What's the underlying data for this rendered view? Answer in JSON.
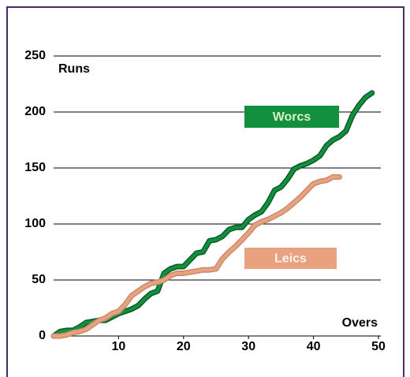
{
  "chart_data": {
    "type": "line",
    "x_label": "Overs",
    "y_label": "Runs",
    "x": [
      0,
      1,
      2,
      3,
      4,
      5,
      6,
      7,
      8,
      9,
      10,
      11,
      12,
      13,
      14,
      15,
      16,
      17,
      18,
      19,
      20,
      21,
      22,
      23,
      24,
      25,
      26,
      27,
      28,
      29,
      30,
      31,
      32,
      33,
      34,
      35,
      36,
      37,
      38,
      39,
      40,
      41,
      42,
      43,
      44,
      45,
      46,
      47,
      48,
      49
    ],
    "series": [
      {
        "name": "Worcs",
        "color": "#12903e",
        "outline": "#0b5a28",
        "values": [
          0,
          4,
          5,
          5,
          8,
          12,
          13,
          14,
          14,
          17,
          20,
          22,
          24,
          27,
          33,
          38,
          40,
          56,
          60,
          62,
          62,
          68,
          74,
          75,
          85,
          86,
          89,
          95,
          97,
          97,
          104,
          108,
          111,
          119,
          130,
          133,
          140,
          149,
          152,
          154,
          157,
          161,
          170,
          175,
          178,
          183,
          197,
          206,
          213,
          217
        ]
      },
      {
        "name": "Leics",
        "color": "#e9a27f",
        "outline": "#c88a6c",
        "values": [
          0,
          0,
          1,
          3,
          4,
          6,
          10,
          14,
          16,
          20,
          22,
          28,
          36,
          40,
          44,
          47,
          48,
          50,
          54,
          56,
          56,
          57,
          58,
          59,
          59,
          60,
          69,
          75,
          80,
          86,
          92,
          99,
          102,
          104,
          107,
          110,
          114,
          119,
          124,
          130,
          136,
          138,
          139,
          142,
          142,
          null,
          null,
          null,
          null,
          null
        ]
      }
    ],
    "xlim": [
      0,
      50
    ],
    "ylim": [
      0,
      250
    ],
    "xticks": [
      10,
      20,
      30,
      40,
      50
    ],
    "yticks": [
      0,
      50,
      100,
      150,
      200,
      250
    ],
    "grid": true
  }
}
